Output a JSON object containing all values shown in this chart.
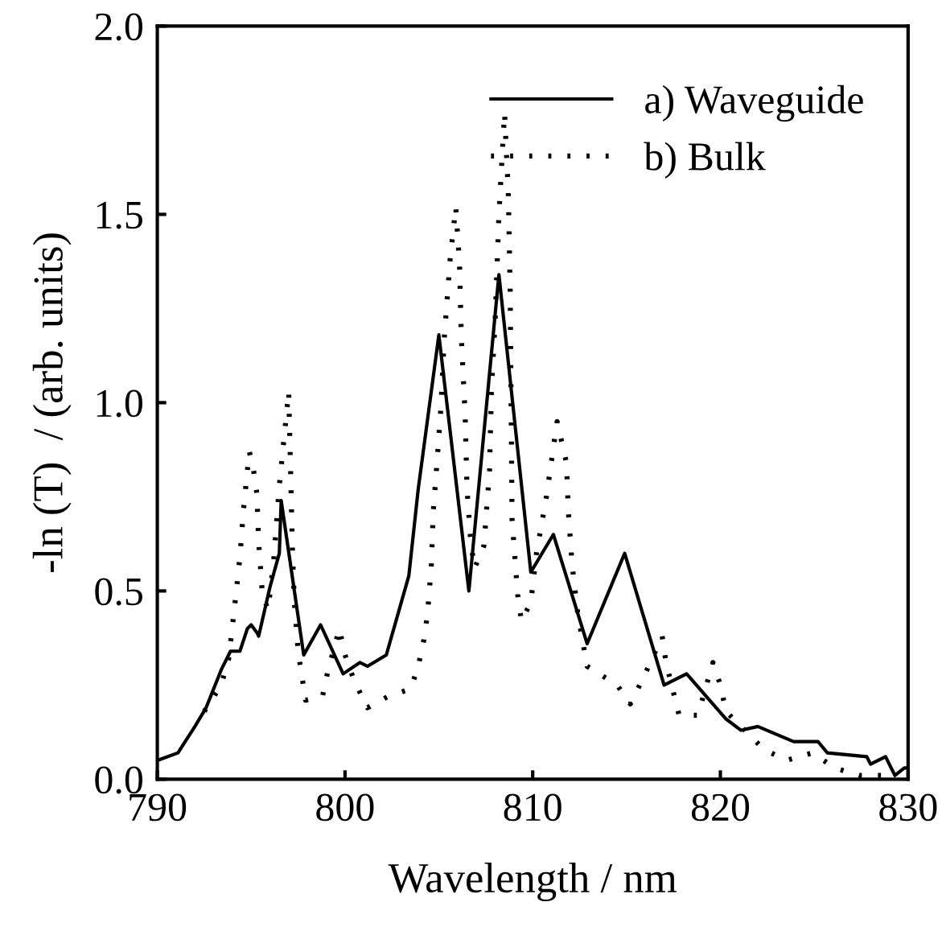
{
  "chart_data": {
    "type": "line",
    "xlabel": "Wavelength / nm",
    "ylabel": "-ln (T)  / (arb. units)",
    "xlim": [
      790,
      830
    ],
    "ylim": [
      0.0,
      2.0
    ],
    "xticks": [
      790,
      800,
      810,
      820,
      830
    ],
    "yticks": [
      {
        "value": 0,
        "label": "0.0"
      },
      0.5,
      {
        "value": 1,
        "label": "1.0"
      },
      1.5,
      {
        "value": 2,
        "label": "2.0"
      }
    ],
    "grid": false,
    "legend": "top right",
    "series": [
      {
        "name": "a) Waveguide",
        "color": "#000000",
        "line_style": "solid",
        "x": [
          790,
          791.1,
          792,
          792.6,
          793.4,
          793.9,
          794.4,
          794.8,
          795.0,
          795.3,
          795.4,
          796.0,
          796.5,
          796.6,
          797.8,
          798.7,
          799.9,
          800.8,
          801.2,
          802.2,
          803.4,
          803.9,
          805.0,
          806.6,
          808.2,
          809.9,
          811.1,
          812.9,
          814.9,
          817.0,
          818.2,
          820.3,
          821.1,
          822.0,
          823.9,
          825.2,
          825.7,
          827.8,
          828.0,
          828.8,
          829.3,
          829.8,
          830
        ],
        "values": [
          0.05,
          0.07,
          0.14,
          0.19,
          0.29,
          0.34,
          0.34,
          0.4,
          0.41,
          0.39,
          0.38,
          0.51,
          0.6,
          0.74,
          0.33,
          0.41,
          0.28,
          0.31,
          0.3,
          0.33,
          0.54,
          0.77,
          1.18,
          0.5,
          1.34,
          0.55,
          0.65,
          0.36,
          0.6,
          0.25,
          0.28,
          0.16,
          0.13,
          0.14,
          0.1,
          0.1,
          0.07,
          0.06,
          0.04,
          0.06,
          0.01,
          0.03,
          0.03
        ]
      },
      {
        "name": "b) Bulk",
        "color": "#000000",
        "line_style": "dotted",
        "x": [
          792.5,
          793.4,
          793.8,
          794.1,
          794.4,
          794.6,
          794.9,
          795.1,
          795.3,
          795.4,
          795.6,
          795.9,
          796.2,
          796.5,
          797.0,
          797.2,
          797.3,
          797.5,
          797.9,
          798.8,
          799.1,
          799.7,
          800.0,
          800.5,
          801.2,
          802.3,
          803.5,
          803.9,
          804.2,
          804.4,
          804.6,
          804.7,
          804.9,
          805.1,
          805.3,
          805.6,
          805.9,
          806.1,
          806.2,
          806.4,
          806.5,
          806.7,
          806.9,
          807.4,
          807.7,
          807.8,
          808.0,
          808.2,
          808.5,
          808.7,
          808.8,
          808.9,
          809.2,
          809.4,
          809.9,
          810.2,
          810.7,
          811.1,
          811.3,
          811.8,
          811.9,
          812.1,
          812.4,
          812.9,
          814.5,
          815.2,
          815.9,
          816.9,
          817.1,
          817.8,
          818.8,
          819.6,
          820.0,
          820.3,
          822.3,
          823.5,
          824.9,
          826.1,
          827.4,
          828.8
        ],
        "values": [
          0.18,
          0.25,
          0.32,
          0.45,
          0.59,
          0.72,
          0.87,
          0.83,
          0.76,
          0.63,
          0.49,
          0.45,
          0.58,
          0.78,
          1.03,
          0.61,
          0.47,
          0.34,
          0.21,
          0.22,
          0.29,
          0.4,
          0.33,
          0.26,
          0.19,
          0.22,
          0.24,
          0.3,
          0.37,
          0.44,
          0.57,
          0.71,
          0.84,
          0.98,
          1.18,
          1.38,
          1.52,
          1.37,
          1.17,
          0.97,
          0.77,
          0.63,
          0.56,
          0.62,
          0.82,
          1.03,
          1.22,
          1.5,
          1.77,
          1.56,
          1.3,
          0.69,
          0.49,
          0.42,
          0.47,
          0.6,
          0.74,
          0.88,
          0.95,
          0.84,
          0.71,
          0.57,
          0.44,
          0.3,
          0.25,
          0.2,
          0.27,
          0.38,
          0.31,
          0.17,
          0.17,
          0.31,
          0.25,
          0.18,
          0.08,
          0.05,
          0.07,
          0.03,
          0.01,
          0.01
        ]
      }
    ]
  }
}
